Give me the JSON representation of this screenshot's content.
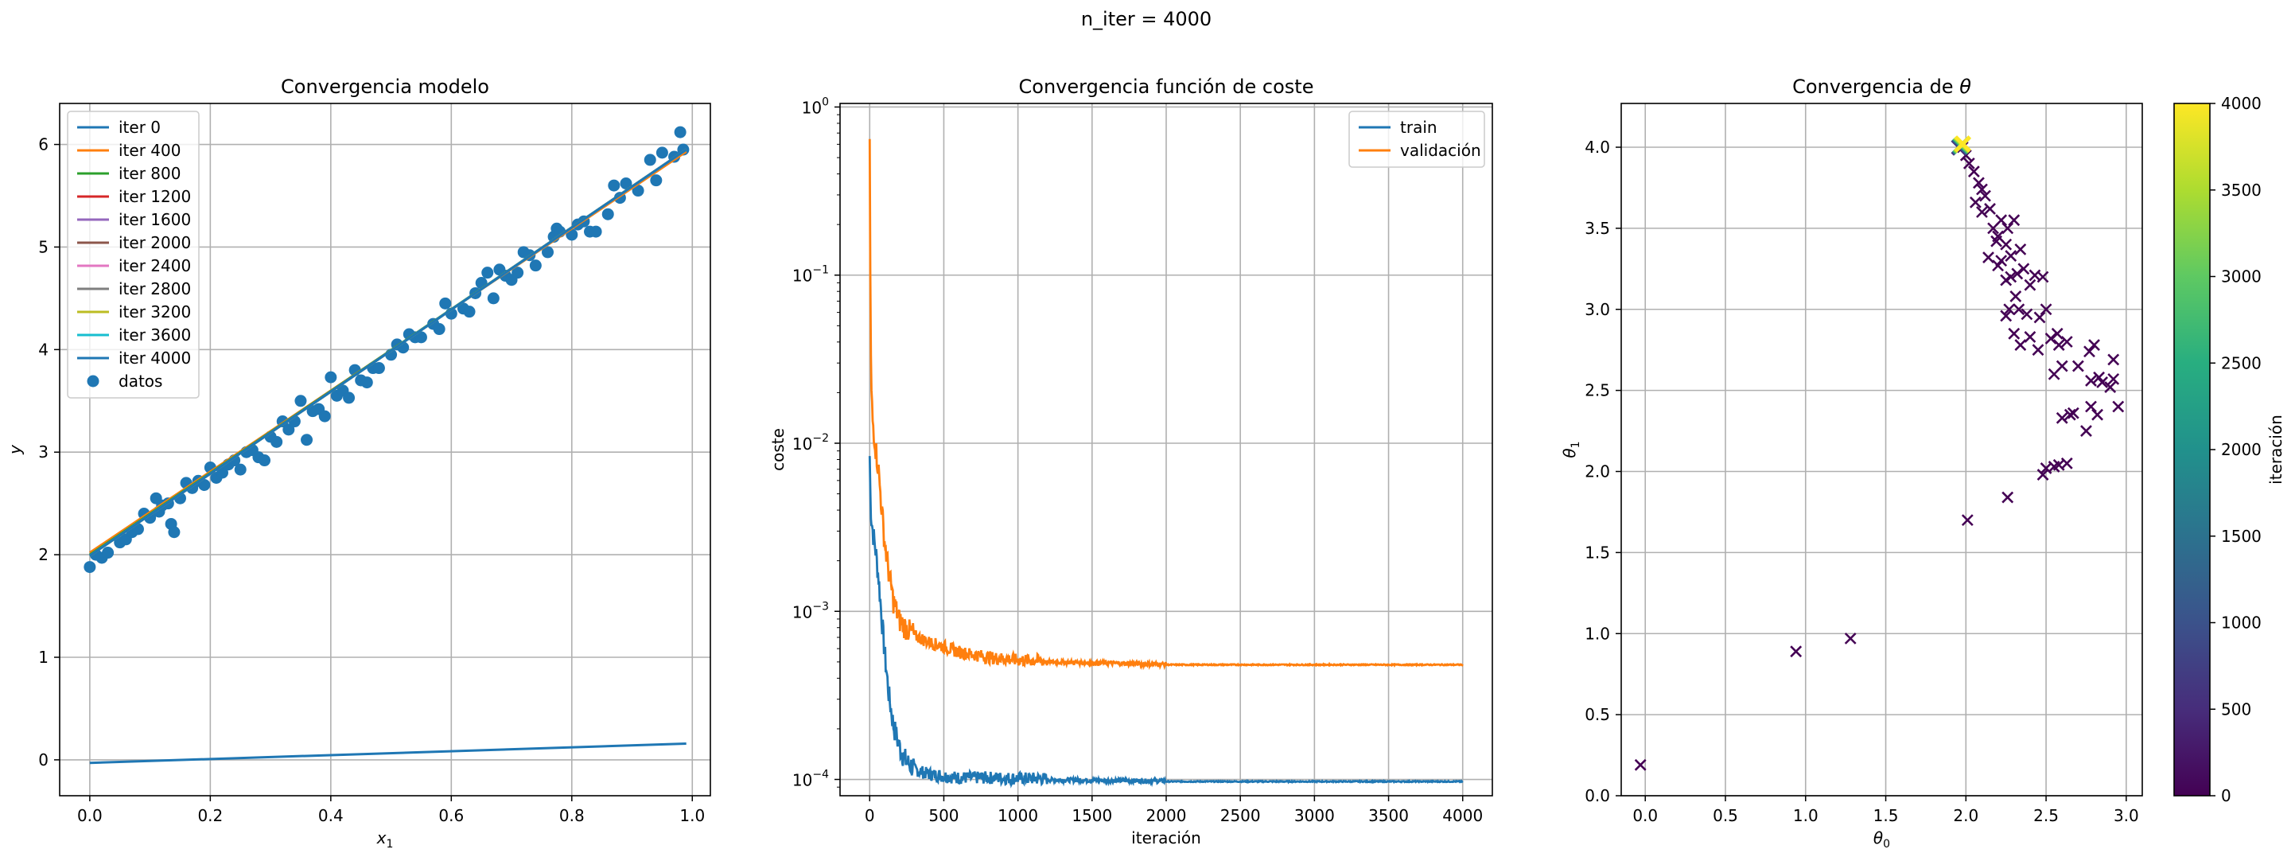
{
  "suptitle": "n_iter = 4000",
  "chart_data": [
    {
      "type": "line",
      "title": "Convergencia modelo",
      "xlabel": "x_1",
      "ylabel": "y",
      "xlim": [
        -0.05,
        1.03
      ],
      "ylim": [
        -0.35,
        6.4
      ],
      "xticks": [
        0.0,
        0.2,
        0.4,
        0.6,
        0.8,
        1.0
      ],
      "xtick_labels": [
        "0.0",
        "0.2",
        "0.4",
        "0.6",
        "0.8",
        "1.0"
      ],
      "yticks": [
        0,
        1,
        2,
        3,
        4,
        5,
        6
      ],
      "ytick_labels": [
        "0",
        "1",
        "2",
        "3",
        "4",
        "5",
        "6"
      ],
      "grid": true,
      "legend_position": "upper-left",
      "x_range": [
        0.0,
        0.99
      ],
      "series": [
        {
          "name": "iter 0",
          "color": "#1f77b4",
          "intercept": -0.03,
          "slope": 0.19
        },
        {
          "name": "iter 400",
          "color": "#ff7f0e",
          "intercept": 2.02,
          "slope": 3.95
        },
        {
          "name": "iter 800",
          "color": "#2ca02c",
          "intercept": 2.0,
          "slope": 3.99
        },
        {
          "name": "iter 1200",
          "color": "#d62728",
          "intercept": 1.99,
          "slope": 4.0
        },
        {
          "name": "iter 1600",
          "color": "#9467bd",
          "intercept": 1.99,
          "slope": 4.0
        },
        {
          "name": "iter 2000",
          "color": "#8c564b",
          "intercept": 1.99,
          "slope": 4.0
        },
        {
          "name": "iter 2400",
          "color": "#e377c2",
          "intercept": 1.99,
          "slope": 4.0
        },
        {
          "name": "iter 2800",
          "color": "#7f7f7f",
          "intercept": 1.99,
          "slope": 4.0
        },
        {
          "name": "iter 3200",
          "color": "#bcbd22",
          "intercept": 1.99,
          "slope": 4.0
        },
        {
          "name": "iter 3600",
          "color": "#17becf",
          "intercept": 1.99,
          "slope": 4.0
        },
        {
          "name": "iter 4000",
          "color": "#1f77b4",
          "intercept": 1.99,
          "slope": 4.0
        }
      ],
      "scatter": {
        "name": "datos",
        "color": "#1f77b4",
        "points": [
          [
            0.0,
            1.88
          ],
          [
            0.01,
            2.0
          ],
          [
            0.02,
            1.97
          ],
          [
            0.03,
            2.02
          ],
          [
            0.05,
            2.12
          ],
          [
            0.06,
            2.15
          ],
          [
            0.07,
            2.22
          ],
          [
            0.08,
            2.25
          ],
          [
            0.09,
            2.4
          ],
          [
            0.1,
            2.36
          ],
          [
            0.11,
            2.55
          ],
          [
            0.115,
            2.42
          ],
          [
            0.12,
            2.48
          ],
          [
            0.13,
            2.5
          ],
          [
            0.135,
            2.3
          ],
          [
            0.14,
            2.22
          ],
          [
            0.15,
            2.55
          ],
          [
            0.16,
            2.7
          ],
          [
            0.17,
            2.65
          ],
          [
            0.18,
            2.72
          ],
          [
            0.19,
            2.68
          ],
          [
            0.2,
            2.85
          ],
          [
            0.21,
            2.75
          ],
          [
            0.22,
            2.8
          ],
          [
            0.23,
            2.88
          ],
          [
            0.24,
            2.92
          ],
          [
            0.25,
            2.83
          ],
          [
            0.26,
            3.0
          ],
          [
            0.27,
            3.02
          ],
          [
            0.28,
            2.95
          ],
          [
            0.29,
            2.92
          ],
          [
            0.3,
            3.15
          ],
          [
            0.31,
            3.1
          ],
          [
            0.32,
            3.3
          ],
          [
            0.33,
            3.22
          ],
          [
            0.34,
            3.3
          ],
          [
            0.35,
            3.5
          ],
          [
            0.36,
            3.12
          ],
          [
            0.37,
            3.4
          ],
          [
            0.38,
            3.42
          ],
          [
            0.39,
            3.35
          ],
          [
            0.4,
            3.73
          ],
          [
            0.41,
            3.55
          ],
          [
            0.42,
            3.6
          ],
          [
            0.43,
            3.53
          ],
          [
            0.44,
            3.8
          ],
          [
            0.45,
            3.7
          ],
          [
            0.46,
            3.68
          ],
          [
            0.47,
            3.82
          ],
          [
            0.48,
            3.82
          ],
          [
            0.5,
            3.95
          ],
          [
            0.51,
            4.05
          ],
          [
            0.52,
            4.02
          ],
          [
            0.53,
            4.15
          ],
          [
            0.54,
            4.12
          ],
          [
            0.55,
            4.12
          ],
          [
            0.57,
            4.25
          ],
          [
            0.58,
            4.2
          ],
          [
            0.59,
            4.45
          ],
          [
            0.6,
            4.35
          ],
          [
            0.62,
            4.4
          ],
          [
            0.63,
            4.37
          ],
          [
            0.64,
            4.55
          ],
          [
            0.65,
            4.65
          ],
          [
            0.66,
            4.75
          ],
          [
            0.67,
            4.5
          ],
          [
            0.68,
            4.78
          ],
          [
            0.69,
            4.72
          ],
          [
            0.7,
            4.68
          ],
          [
            0.71,
            4.75
          ],
          [
            0.72,
            4.95
          ],
          [
            0.73,
            4.92
          ],
          [
            0.74,
            4.82
          ],
          [
            0.76,
            4.95
          ],
          [
            0.77,
            5.1
          ],
          [
            0.775,
            5.18
          ],
          [
            0.78,
            5.15
          ],
          [
            0.8,
            5.12
          ],
          [
            0.81,
            5.22
          ],
          [
            0.82,
            5.25
          ],
          [
            0.83,
            5.15
          ],
          [
            0.84,
            5.15
          ],
          [
            0.86,
            5.32
          ],
          [
            0.87,
            5.6
          ],
          [
            0.88,
            5.48
          ],
          [
            0.89,
            5.62
          ],
          [
            0.91,
            5.55
          ],
          [
            0.93,
            5.85
          ],
          [
            0.94,
            5.65
          ],
          [
            0.95,
            5.92
          ],
          [
            0.97,
            5.88
          ],
          [
            0.98,
            6.12
          ],
          [
            0.985,
            5.95
          ]
        ]
      }
    },
    {
      "type": "line",
      "title": "Convergencia función de coste",
      "xlabel": "iteración",
      "ylabel": "coste",
      "yscale": "log",
      "xlim": [
        -200,
        4200
      ],
      "ylim": [
        8e-05,
        1.05
      ],
      "xticks": [
        0,
        500,
        1000,
        1500,
        2000,
        2500,
        3000,
        3500,
        4000
      ],
      "xtick_labels": [
        "0",
        "500",
        "1000",
        "1500",
        "2000",
        "2500",
        "3000",
        "3500",
        "4000"
      ],
      "yticks": [
        0.0001,
        0.001,
        0.01,
        0.1,
        1
      ],
      "ytick_labels": [
        "10",
        "10",
        "10",
        "10",
        "10"
      ],
      "ytick_exponents": [
        "−4",
        "−3",
        "−2",
        "−1",
        "0"
      ],
      "grid": true,
      "legend_position": "upper-right",
      "series": [
        {
          "name": "train",
          "color": "#1f77b4",
          "x": [
            0,
            5,
            10,
            20,
            40,
            60,
            80,
            100,
            130,
            160,
            200,
            250,
            300,
            400,
            500,
            600,
            800,
            1000,
            1500,
            2000,
            2500,
            3000,
            3500,
            4000
          ],
          "values": [
            0.008,
            0.0045,
            0.0035,
            0.0029,
            0.0022,
            0.0015,
            0.0009,
            0.00055,
            0.0003,
            0.0002,
            0.00015,
            0.00012,
            0.000112,
            0.000105,
            0.000102,
            0.0001,
            0.0001,
            9.9e-05,
            9.8e-05,
            9.7e-05,
            9.7e-05,
            9.7e-05,
            9.7e-05,
            9.7e-05
          ]
        },
        {
          "name": "validación",
          "color": "#ff7f0e",
          "x": [
            0,
            5,
            10,
            20,
            40,
            60,
            80,
            100,
            130,
            160,
            200,
            250,
            300,
            400,
            500,
            600,
            800,
            1000,
            1500,
            2000,
            2500,
            3000,
            3500,
            4000
          ],
          "values": [
            0.65,
            0.06,
            0.02,
            0.013,
            0.009,
            0.0065,
            0.004,
            0.0025,
            0.0016,
            0.0011,
            0.00085,
            0.00075,
            0.0007,
            0.00064,
            0.0006,
            0.00056,
            0.00052,
            0.0005,
            0.00049,
            0.00048,
            0.00048,
            0.00048,
            0.00048,
            0.00048
          ]
        }
      ]
    },
    {
      "type": "scatter",
      "title": "Convergencia de θ",
      "xlabel": "θ",
      "xlabel_sub": "0",
      "ylabel": "θ",
      "ylabel_sub": "1",
      "xlim": [
        -0.15,
        3.1
      ],
      "ylim": [
        0.0,
        4.27
      ],
      "xticks": [
        0.0,
        0.5,
        1.0,
        1.5,
        2.0,
        2.5,
        3.0
      ],
      "xtick_labels": [
        "0.0",
        "0.5",
        "1.0",
        "1.5",
        "2.0",
        "2.5",
        "3.0"
      ],
      "yticks": [
        0.0,
        0.5,
        1.0,
        1.5,
        2.0,
        2.5,
        3.0,
        3.5,
        4.0
      ],
      "ytick_labels": [
        "0.0",
        "0.5",
        "1.0",
        "1.5",
        "2.0",
        "2.5",
        "3.0",
        "3.5",
        "4.0"
      ],
      "grid": true,
      "marker": "x",
      "colormap": "viridis",
      "colorbar": {
        "label": "iteración",
        "range": [
          0,
          4000
        ],
        "ticks": [
          0,
          500,
          1000,
          1500,
          2000,
          2500,
          3000,
          3500,
          4000
        ],
        "tick_labels": [
          "0",
          "500",
          "1000",
          "1500",
          "2000",
          "2500",
          "3000",
          "3500",
          "4000"
        ]
      },
      "points_iter0_color": "#440154",
      "final_color": "#fde725",
      "final_point": [
        1.98,
        4.02
      ],
      "points": [
        [
          -0.03,
          0.19
        ],
        [
          0.94,
          0.89
        ],
        [
          1.28,
          0.97
        ],
        [
          2.01,
          1.7
        ],
        [
          2.26,
          1.84
        ],
        [
          2.48,
          1.98
        ],
        [
          2.5,
          2.02
        ],
        [
          2.55,
          2.03
        ],
        [
          2.58,
          2.04
        ],
        [
          2.63,
          2.05
        ],
        [
          2.6,
          2.33
        ],
        [
          2.65,
          2.35
        ],
        [
          2.67,
          2.36
        ],
        [
          2.75,
          2.25
        ],
        [
          2.78,
          2.4
        ],
        [
          2.82,
          2.35
        ],
        [
          2.85,
          2.55
        ],
        [
          2.9,
          2.52
        ],
        [
          2.92,
          2.57
        ],
        [
          2.95,
          2.4
        ],
        [
          2.92,
          2.69
        ],
        [
          2.83,
          2.58
        ],
        [
          2.78,
          2.56
        ],
        [
          2.8,
          2.78
        ],
        [
          2.77,
          2.74
        ],
        [
          2.7,
          2.65
        ],
        [
          2.6,
          2.65
        ],
        [
          2.55,
          2.6
        ],
        [
          2.53,
          2.82
        ],
        [
          2.58,
          2.78
        ],
        [
          2.63,
          2.8
        ],
        [
          2.57,
          2.85
        ],
        [
          2.45,
          2.75
        ],
        [
          2.4,
          2.83
        ],
        [
          2.3,
          2.85
        ],
        [
          2.34,
          2.78
        ],
        [
          2.46,
          2.95
        ],
        [
          2.5,
          3.0
        ],
        [
          2.38,
          2.97
        ],
        [
          2.33,
          3.0
        ],
        [
          2.27,
          3.0
        ],
        [
          2.25,
          2.96
        ],
        [
          2.31,
          3.08
        ],
        [
          2.28,
          3.2
        ],
        [
          2.32,
          3.22
        ],
        [
          2.36,
          3.25
        ],
        [
          2.25,
          3.18
        ],
        [
          2.22,
          3.3
        ],
        [
          2.28,
          3.33
        ],
        [
          2.34,
          3.37
        ],
        [
          2.4,
          3.15
        ],
        [
          2.43,
          3.21
        ],
        [
          2.48,
          3.2
        ],
        [
          2.17,
          3.5
        ],
        [
          2.2,
          3.45
        ],
        [
          2.25,
          3.4
        ],
        [
          2.3,
          3.55
        ],
        [
          2.22,
          3.55
        ],
        [
          2.26,
          3.5
        ],
        [
          2.19,
          3.42
        ],
        [
          2.15,
          3.62
        ],
        [
          2.12,
          3.7
        ],
        [
          2.1,
          3.74
        ],
        [
          2.08,
          3.78
        ],
        [
          2.05,
          3.85
        ],
        [
          2.02,
          3.9
        ],
        [
          2.0,
          3.95
        ],
        [
          1.98,
          4.0
        ],
        [
          2.14,
          3.32
        ],
        [
          2.2,
          3.27
        ],
        [
          2.1,
          3.6
        ],
        [
          2.06,
          3.66
        ]
      ]
    }
  ]
}
